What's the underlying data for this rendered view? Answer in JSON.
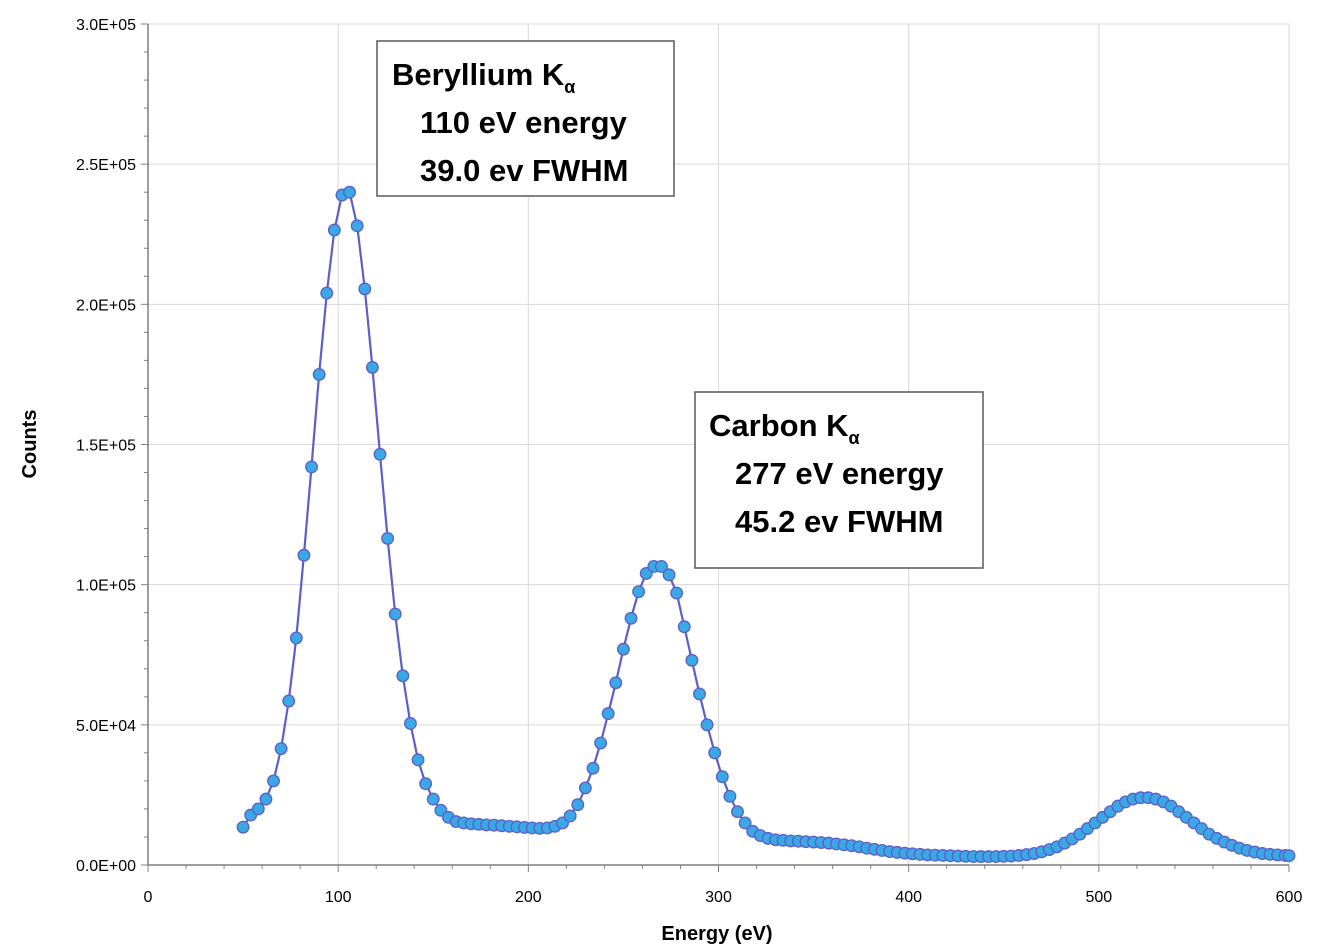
{
  "chart_data": {
    "type": "scatter",
    "title": "",
    "xlabel": "Energy (eV)",
    "ylabel": "Counts",
    "xlim": [
      0,
      600
    ],
    "ylim": [
      0,
      300000
    ],
    "x_ticks": [
      0,
      100,
      200,
      300,
      400,
      500,
      600
    ],
    "x_tick_labels": [
      "0",
      "100",
      "200",
      "300",
      "400",
      "500",
      "600"
    ],
    "y_ticks": [
      0,
      50000,
      100000,
      150000,
      200000,
      250000,
      300000
    ],
    "y_tick_labels": [
      "0.0E+00",
      "5.0E+04",
      "1.0E+05",
      "1.5E+05",
      "2.0E+05",
      "2.5E+05",
      "3.0E+05"
    ],
    "grid": true,
    "legend": "none",
    "line_color": "#5b5fc7",
    "marker_color": "#3ba8e6",
    "series": [
      {
        "x": [
          50,
          54,
          58,
          62,
          66,
          70,
          74,
          78,
          82,
          86,
          90,
          94,
          98,
          102,
          106,
          110,
          114,
          118,
          122,
          126,
          130,
          134,
          138,
          142,
          146,
          150,
          154,
          158,
          162,
          166,
          170,
          174,
          178,
          182,
          186,
          190,
          194,
          198,
          202,
          206,
          210,
          214,
          218,
          222,
          226,
          230,
          234,
          238,
          242,
          246,
          250,
          254,
          258,
          262,
          266,
          270,
          274,
          278,
          282,
          286,
          290,
          294,
          298,
          302,
          306,
          310,
          314,
          318,
          322,
          326,
          330,
          334,
          338,
          342,
          346,
          350,
          354,
          358,
          362,
          366,
          370,
          374,
          378,
          382,
          386,
          390,
          394,
          398,
          402,
          406,
          410,
          414,
          418,
          422,
          426,
          430,
          434,
          438,
          442,
          446,
          450,
          454,
          458,
          462,
          466,
          470,
          474,
          478,
          482,
          486,
          490,
          494,
          498,
          502,
          506,
          510,
          514,
          518,
          522,
          526,
          530,
          534,
          538,
          542,
          546,
          550,
          554,
          558,
          562,
          566,
          570,
          574,
          578,
          582,
          586,
          590,
          594,
          598,
          600
        ],
        "y": [
          13500,
          17800,
          20000,
          23500,
          30000,
          41500,
          58500,
          81000,
          110500,
          142000,
          175000,
          204000,
          226500,
          239000,
          240000,
          228000,
          205500,
          177500,
          146500,
          116500,
          89500,
          67500,
          50500,
          37500,
          29000,
          23500,
          19500,
          17000,
          15500,
          15000,
          14700,
          14500,
          14300,
          14200,
          14000,
          13800,
          13600,
          13400,
          13200,
          13100,
          13200,
          13800,
          15000,
          17500,
          21500,
          27500,
          34500,
          43500,
          54000,
          65000,
          77000,
          88000,
          97500,
          104000,
          106500,
          106500,
          103500,
          97000,
          85000,
          73000,
          61000,
          50000,
          40000,
          31500,
          24500,
          19000,
          15000,
          12000,
          10500,
          9500,
          9000,
          8800,
          8600,
          8500,
          8300,
          8200,
          8000,
          7800,
          7500,
          7200,
          6900,
          6500,
          6000,
          5600,
          5200,
          4800,
          4500,
          4200,
          4000,
          3800,
          3600,
          3500,
          3400,
          3300,
          3200,
          3100,
          3000,
          3000,
          3000,
          3000,
          3100,
          3200,
          3400,
          3700,
          4100,
          4700,
          5500,
          6500,
          7800,
          9300,
          11000,
          13000,
          15000,
          17000,
          19000,
          21000,
          22500,
          23500,
          24000,
          24000,
          23500,
          22500,
          21000,
          19000,
          17000,
          15000,
          13000,
          11000,
          9500,
          8200,
          7000,
          6000,
          5200,
          4600,
          4100,
          3800,
          3600,
          3400,
          3300
        ]
      }
    ],
    "annotations": [
      {
        "lines": [
          {
            "text": "Beryllium K",
            "sub": "α"
          },
          {
            "text": "110 eV energy",
            "sub": ""
          },
          {
            "text": "39.0 ev FWHM",
            "sub": ""
          }
        ]
      },
      {
        "lines": [
          {
            "text": "Carbon K",
            "sub": "α"
          },
          {
            "text": "277 eV energy",
            "sub": ""
          },
          {
            "text": "45.2 ev FWHM",
            "sub": ""
          }
        ]
      }
    ]
  }
}
